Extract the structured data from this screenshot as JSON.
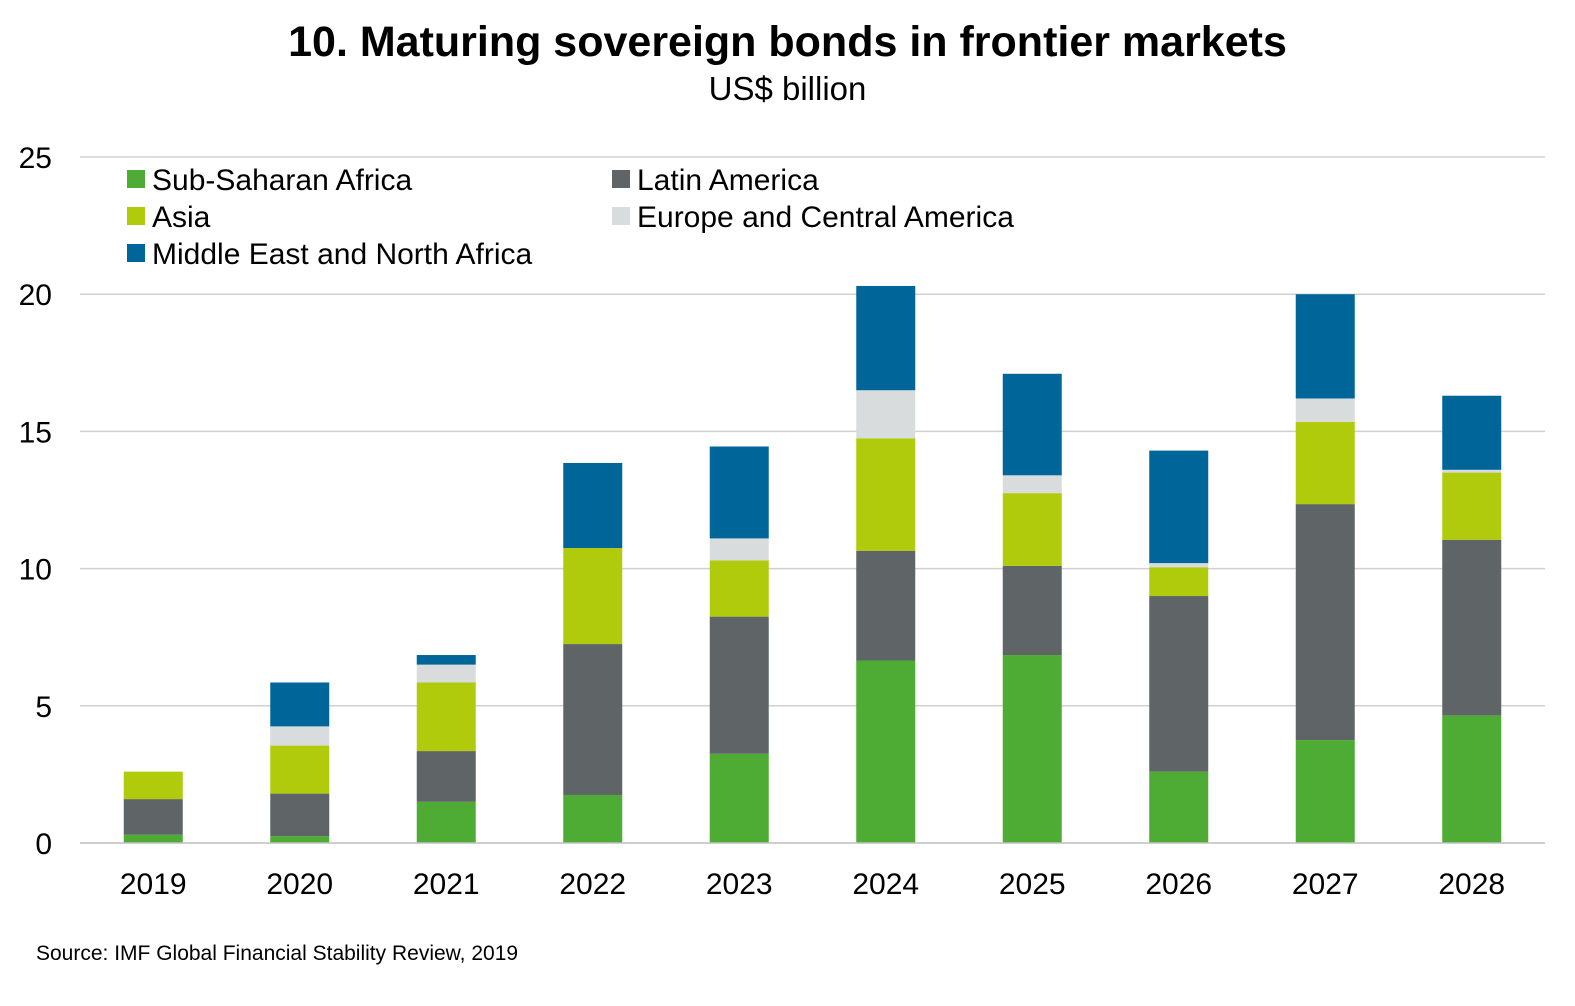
{
  "chart_data": {
    "type": "bar",
    "stacked": true,
    "title": "10. Maturing sovereign bonds in frontier markets",
    "subtitle": "US$ billion",
    "xlabel": "",
    "ylabel": "",
    "ylim": [
      0,
      25
    ],
    "yticks": [
      0,
      5,
      10,
      15,
      20,
      25
    ],
    "grid": true,
    "legend_position": "top-left",
    "categories": [
      "2019",
      "2020",
      "2021",
      "2022",
      "2023",
      "2024",
      "2025",
      "2026",
      "2027",
      "2028"
    ],
    "series": [
      {
        "name": "Sub-Saharan Africa",
        "color": "#4eac34",
        "values": [
          0.3,
          0.25,
          1.5,
          1.75,
          3.25,
          6.65,
          6.85,
          2.6,
          3.75,
          4.65
        ]
      },
      {
        "name": "Latin America",
        "color": "#5f6566",
        "values": [
          1.3,
          1.55,
          1.85,
          5.5,
          5.0,
          4.0,
          3.25,
          6.4,
          8.6,
          6.4
        ]
      },
      {
        "name": "Asia",
        "color": "#afcb0c",
        "values": [
          1.0,
          1.75,
          2.5,
          3.5,
          2.05,
          4.1,
          2.65,
          1.05,
          3.0,
          2.45
        ]
      },
      {
        "name": "Europe and Central America",
        "color": "#d9dcdd",
        "values": [
          0.0,
          0.7,
          0.65,
          0.0,
          0.8,
          1.75,
          0.65,
          0.15,
          0.85,
          0.1
        ]
      },
      {
        "name": "Middle East and North Africa",
        "color": "#006699",
        "values": [
          0.0,
          1.6,
          0.35,
          3.1,
          3.35,
          3.8,
          3.7,
          4.1,
          3.8,
          2.7
        ]
      }
    ]
  },
  "source": "Source: IMF Global Financial Stability Review, 2019"
}
